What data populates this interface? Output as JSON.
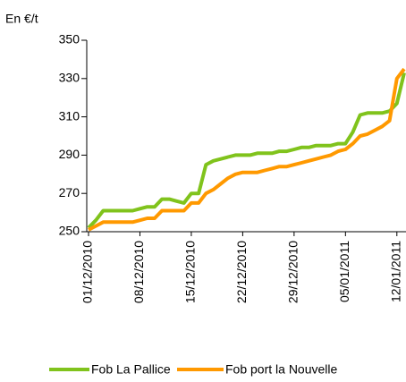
{
  "chart_data": {
    "type": "line",
    "y_label": "En €/t",
    "x": [
      "2010-12-01",
      "2010-12-02",
      "2010-12-03",
      "2010-12-04",
      "2010-12-05",
      "2010-12-06",
      "2010-12-07",
      "2010-12-08",
      "2010-12-09",
      "2010-12-10",
      "2010-12-11",
      "2010-12-12",
      "2010-12-13",
      "2010-12-14",
      "2010-12-15",
      "2010-12-16",
      "2010-12-17",
      "2010-12-18",
      "2010-12-19",
      "2010-12-20",
      "2010-12-21",
      "2010-12-22",
      "2010-12-23",
      "2010-12-24",
      "2010-12-25",
      "2010-12-26",
      "2010-12-27",
      "2010-12-28",
      "2010-12-29",
      "2010-12-30",
      "2010-12-31",
      "2011-01-01",
      "2011-01-02",
      "2011-01-03",
      "2011-01-04",
      "2011-01-05",
      "2011-01-06",
      "2011-01-07",
      "2011-01-08",
      "2011-01-09",
      "2011-01-10",
      "2011-01-11",
      "2011-01-12",
      "2011-01-13"
    ],
    "series": [
      {
        "name": "Fob La Pallice",
        "color": "#80c31c",
        "values": [
          252,
          256,
          261,
          261,
          261,
          261,
          261,
          262,
          263,
          263,
          267,
          267,
          266,
          265,
          270,
          270,
          285,
          287,
          288,
          289,
          290,
          290,
          290,
          291,
          291,
          291,
          292,
          292,
          293,
          294,
          294,
          295,
          295,
          295,
          296,
          296,
          302,
          311,
          312,
          312,
          312,
          313,
          317,
          333
        ]
      },
      {
        "name": "Fob port la Nouvelle",
        "color": "#ff9900",
        "values": [
          251,
          253,
          255,
          255,
          255,
          255,
          255,
          256,
          257,
          257,
          261,
          261,
          261,
          261,
          265,
          265,
          270,
          272,
          275,
          278,
          280,
          281,
          281,
          281,
          282,
          283,
          284,
          284,
          285,
          286,
          287,
          288,
          289,
          290,
          292,
          293,
          296,
          300,
          301,
          303,
          305,
          308,
          330,
          335
        ]
      }
    ],
    "xlim": [
      "2010-12-01",
      "2011-01-13"
    ],
    "xticks": [
      {
        "value": "2010-12-01",
        "label": "01/12/2010"
      },
      {
        "value": "2010-12-08",
        "label": "08/12/2010"
      },
      {
        "value": "2010-12-15",
        "label": "15/12/2010"
      },
      {
        "value": "2010-12-22",
        "label": "22/12/2010"
      },
      {
        "value": "2010-12-29",
        "label": "29/12/2010"
      },
      {
        "value": "2011-01-05",
        "label": "05/01/2011"
      },
      {
        "value": "2011-01-12",
        "label": "12/01/2011"
      }
    ],
    "ylim": [
      250,
      350
    ],
    "yticks": [
      250,
      270,
      290,
      310,
      330,
      350
    ],
    "grid": false,
    "legend": "bottom"
  }
}
